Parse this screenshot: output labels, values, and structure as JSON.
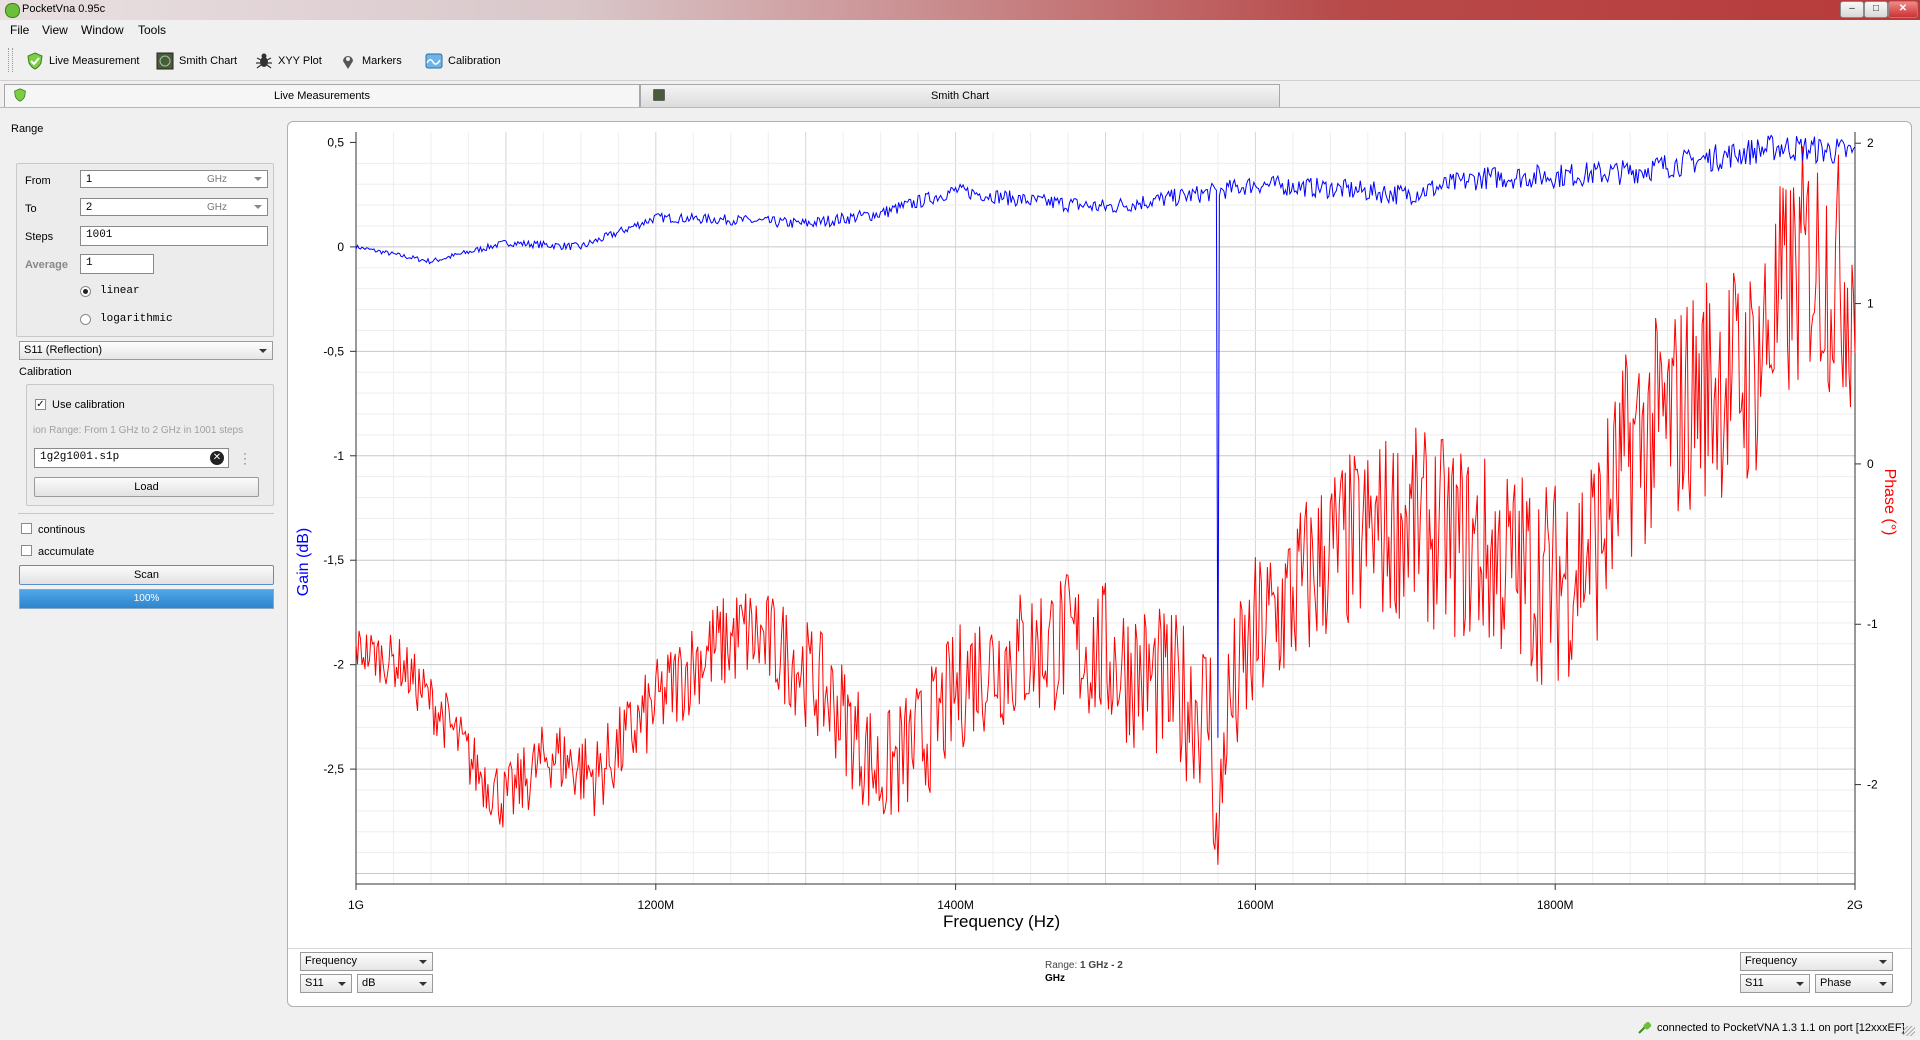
{
  "window": {
    "title": "PocketVna 0.95c",
    "buttons": {
      "minimize": "–",
      "maximize": "□",
      "close": "✕"
    }
  },
  "menu": [
    "File",
    "View",
    "Window",
    "Tools"
  ],
  "toolbar": {
    "live": "Live Measurement",
    "smith": "Smith Chart",
    "xyy": "XYY Plot",
    "markers": "Markers",
    "calibration": "Calibration"
  },
  "tabs": {
    "live": "Live Measurements",
    "smith": "Smith Chart"
  },
  "range": {
    "heading": "Range",
    "from_label": "From",
    "from_value": "1",
    "from_unit": "GHz",
    "to_label": "To",
    "to_value": "2",
    "to_unit": "GHz",
    "steps_label": "Steps",
    "steps_value": "1001",
    "average_label": "Average",
    "average_value": "1",
    "linear": "linear",
    "logarithmic": "logarithmic",
    "scale_selected": "linear"
  },
  "parameter_select": "S11 (Reflection)",
  "calibration": {
    "heading": "Calibration",
    "use_label": "Use calibration",
    "use_checked": true,
    "info": "ion Range: From 1 GHz to 2 GHz in 1001 steps",
    "file": "1g2g1001.s1p",
    "load": "Load"
  },
  "options": {
    "continous": "continous",
    "accumulate": "accumulate"
  },
  "scan": {
    "label": "Scan",
    "progress_text": "100%",
    "progress": 1.0
  },
  "plot_controls": {
    "left_x": "Frequency",
    "left_param": "S11",
    "left_unit": "dB",
    "range_label": "Range:",
    "range_value": "1 GHz - 2",
    "range_value2": "GHz",
    "right_x": "Frequency",
    "right_param": "S11",
    "right_unit": "Phase"
  },
  "status": "connected to PocketVNA 1.3 1.1 on port [12xxxEF]",
  "colors": {
    "gain": "#0000ff",
    "phase": "#ff0000",
    "progress": "#2f8fd8"
  },
  "chart_data": {
    "type": "line",
    "title": "",
    "xlabel": "Frequency (Hz)",
    "ylabel_left": "Gain (dB)",
    "ylabel_right": "Phase (°)",
    "x_ticks": [
      {
        "v": 1000,
        "label": "1G"
      },
      {
        "v": 1200,
        "label": "1200M"
      },
      {
        "v": 1400,
        "label": "1400M"
      },
      {
        "v": 1600,
        "label": "1600M"
      },
      {
        "v": 1800,
        "label": "1800M"
      },
      {
        "v": 2000,
        "label": "2G"
      }
    ],
    "left_ticks": [
      {
        "v": 0.5,
        "label": "0,5"
      },
      {
        "v": 0,
        "label": "0"
      },
      {
        "v": -0.5,
        "label": "-0,5"
      },
      {
        "v": -1,
        "label": "-1"
      },
      {
        "v": -1.5,
        "label": "-1,5"
      },
      {
        "v": -2,
        "label": "-2"
      },
      {
        "v": -2.5,
        "label": "-2,5"
      }
    ],
    "right_ticks": [
      {
        "v": 2,
        "label": "2"
      },
      {
        "v": 1,
        "label": "1"
      },
      {
        "v": 0,
        "label": "0"
      },
      {
        "v": -1,
        "label": "-1"
      },
      {
        "v": -2,
        "label": "-2"
      }
    ],
    "xlim_mhz": [
      1000,
      2000
    ],
    "ylim_left": [
      -3.05,
      0.55
    ],
    "ylim_right": [
      -2.62,
      2.07
    ],
    "grid": true,
    "series": [
      {
        "name": "S11 dB",
        "axis": "left",
        "x_mhz": [
          1000,
          1050,
          1100,
          1150,
          1200,
          1250,
          1300,
          1350,
          1400,
          1450,
          1500,
          1550,
          1570,
          1575,
          1580,
          1600,
          1650,
          1700,
          1750,
          1800,
          1850,
          1900,
          1950,
          2000
        ],
        "values": [
          0.0,
          -0.07,
          0.02,
          0.0,
          0.14,
          0.13,
          0.11,
          0.16,
          0.27,
          0.22,
          0.19,
          0.24,
          0.26,
          -2.35,
          0.26,
          0.3,
          0.28,
          0.25,
          0.33,
          0.34,
          0.36,
          0.42,
          0.48,
          0.45
        ]
      },
      {
        "name": "S11 Phase",
        "axis": "right",
        "x_mhz": [
          1000,
          1030,
          1060,
          1080,
          1100,
          1130,
          1160,
          1200,
          1230,
          1260,
          1290,
          1320,
          1350,
          1380,
          1410,
          1440,
          1470,
          1500,
          1540,
          1570,
          1575,
          1580,
          1600,
          1650,
          1700,
          1750,
          1800,
          1830,
          1850,
          1880,
          1900,
          1930,
          1950,
          1970,
          2000
        ],
        "values": [
          -1.15,
          -1.25,
          -1.6,
          -1.9,
          -2.1,
          -1.8,
          -1.95,
          -1.5,
          -1.2,
          -1.05,
          -1.2,
          -1.5,
          -1.95,
          -1.7,
          -1.3,
          -1.2,
          -1.1,
          -1.2,
          -1.4,
          -1.55,
          -2.5,
          -1.6,
          -1.1,
          -0.55,
          -0.35,
          -0.55,
          -0.75,
          -0.45,
          0.1,
          0.3,
          0.5,
          0.55,
          1.0,
          1.3,
          1.1
        ]
      }
    ]
  }
}
